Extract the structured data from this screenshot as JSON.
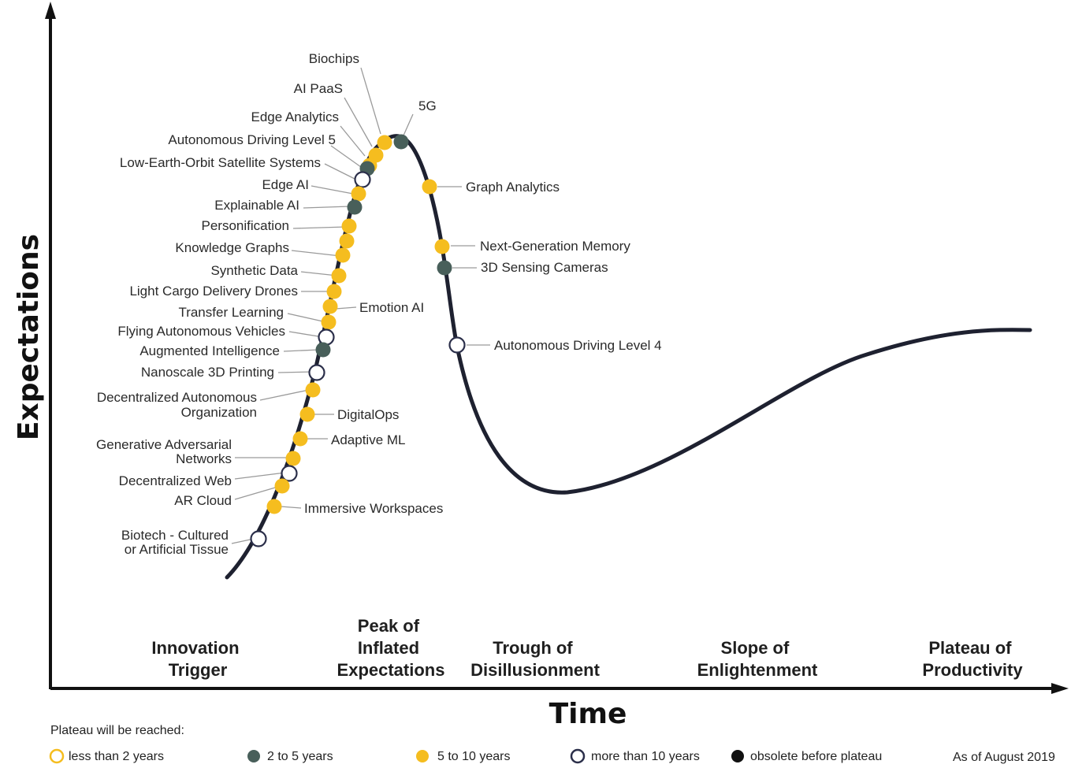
{
  "axes": {
    "y_title": "Expectations",
    "x_title": "Time"
  },
  "phases": [
    {
      "key": "innovation",
      "lines": [
        "Innovation",
        "Trigger"
      ]
    },
    {
      "key": "peak",
      "lines": [
        "Peak of",
        "Inflated",
        "Expectations"
      ]
    },
    {
      "key": "trough",
      "lines": [
        "Trough of",
        "Disillusionment"
      ]
    },
    {
      "key": "slope",
      "lines": [
        "Slope of",
        "Enlightenment"
      ]
    },
    {
      "key": "plateau",
      "lines": [
        "Plateau of",
        "Productivity"
      ]
    }
  ],
  "legend": {
    "title": "Plateau will be reached:",
    "items": [
      {
        "kind": "lt2",
        "label": "less than 2 years"
      },
      {
        "kind": "2to5",
        "label": "2 to 5 years"
      },
      {
        "kind": "5to10",
        "label": "5 to 10 years"
      },
      {
        "kind": "gt10",
        "label": "more than 10 years"
      },
      {
        "kind": "obsolete",
        "label": "obsolete before plateau"
      }
    ],
    "as_of": "As of August 2019"
  },
  "colors": {
    "5to10": "#f5bd1f",
    "2to5": "#485f5a",
    "gt10_fill": "#ffffff",
    "gt10_stroke": "#2b2f4a",
    "lt2_stroke": "#f5bd1f",
    "obsolete": "#111111",
    "curve": "#1e2130"
  },
  "technologies": [
    {
      "name": "Biochips",
      "kind": "5to10"
    },
    {
      "name": "AI PaaS",
      "kind": "5to10"
    },
    {
      "name": "5G",
      "kind": "2to5"
    },
    {
      "name": "Edge Analytics",
      "kind": "5to10"
    },
    {
      "name": "Autonomous Driving Level 5",
      "kind": "2to5"
    },
    {
      "name": "Low-Earth-Orbit Satellite Systems",
      "kind": "gt10"
    },
    {
      "name": "Edge AI",
      "kind": "5to10"
    },
    {
      "name": "Explainable AI",
      "kind": "2to5"
    },
    {
      "name": "Personification",
      "kind": "5to10"
    },
    {
      "name": "Knowledge Graphs",
      "kind": "5to10"
    },
    {
      "name": "Synthetic Data",
      "kind": "5to10"
    },
    {
      "name": "Light Cargo Delivery Drones",
      "kind": "5to10"
    },
    {
      "name": "Transfer Learning",
      "kind": "5to10"
    },
    {
      "name": "Emotion AI",
      "kind": "5to10"
    },
    {
      "name": "Flying Autonomous Vehicles",
      "kind": "gt10"
    },
    {
      "name": "Augmented Intelligence",
      "kind": "2to5"
    },
    {
      "name": "Nanoscale 3D Printing",
      "kind": "gt10"
    },
    {
      "name": "Decentralized Autonomous Organization",
      "kind": "5to10"
    },
    {
      "name": "DigitalOps",
      "kind": "5to10"
    },
    {
      "name": "Adaptive ML",
      "kind": "5to10"
    },
    {
      "name": "Generative Adversarial Networks",
      "kind": "5to10"
    },
    {
      "name": "Decentralized Web",
      "kind": "gt10"
    },
    {
      "name": "AR Cloud",
      "kind": "5to10"
    },
    {
      "name": "Immersive Workspaces",
      "kind": "5to10"
    },
    {
      "name": "Biotech - Cultured or Artificial Tissue",
      "kind": "gt10"
    },
    {
      "name": "Graph Analytics",
      "kind": "5to10"
    },
    {
      "name": "Next-Generation Memory",
      "kind": "5to10"
    },
    {
      "name": "3D Sensing Cameras",
      "kind": "2to5"
    },
    {
      "name": "Autonomous Driving Level 4",
      "kind": "gt10"
    }
  ]
}
